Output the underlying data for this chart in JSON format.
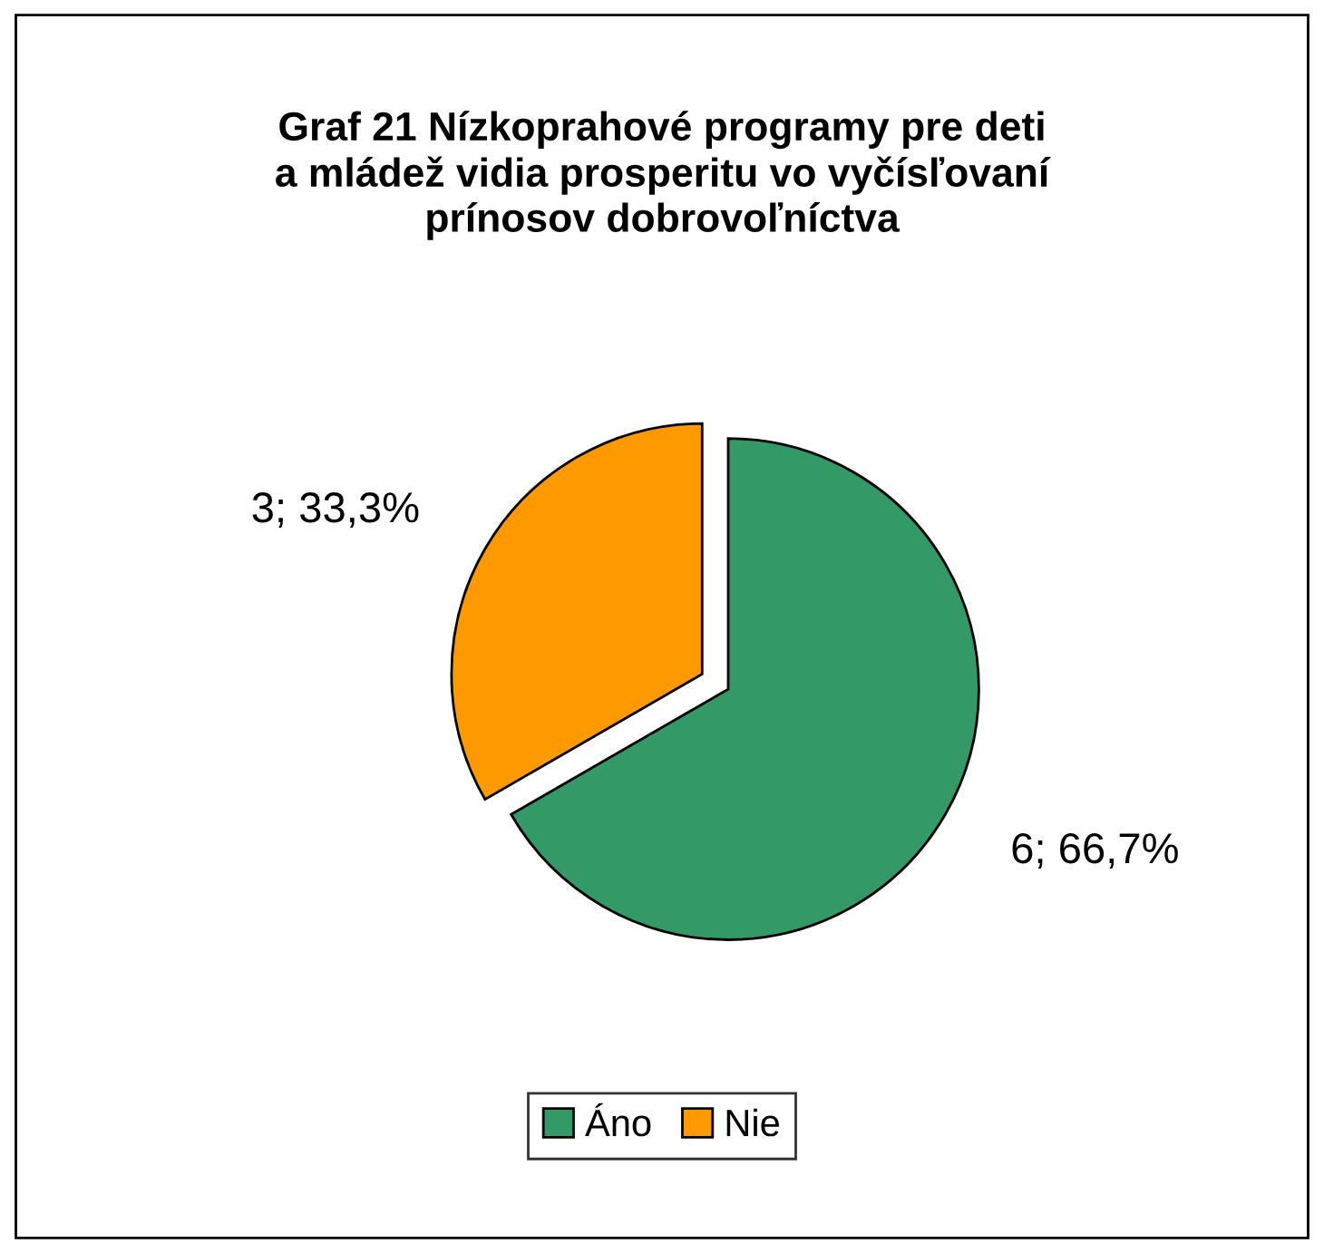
{
  "chart_data": {
    "type": "pie",
    "title": "Graf 21 Nízkoprahové programy pre deti\na mládež vidia prosperitu vo vyčísľovaní\nprínosov dobrovoľníctva",
    "categories": [
      "Áno",
      "Nie"
    ],
    "values": [
      6,
      3
    ],
    "colors": [
      "#339966",
      "#ff9900"
    ],
    "value_labels": [
      "6; 66,7%",
      "3; 33,3%"
    ],
    "legend": "bottom"
  }
}
